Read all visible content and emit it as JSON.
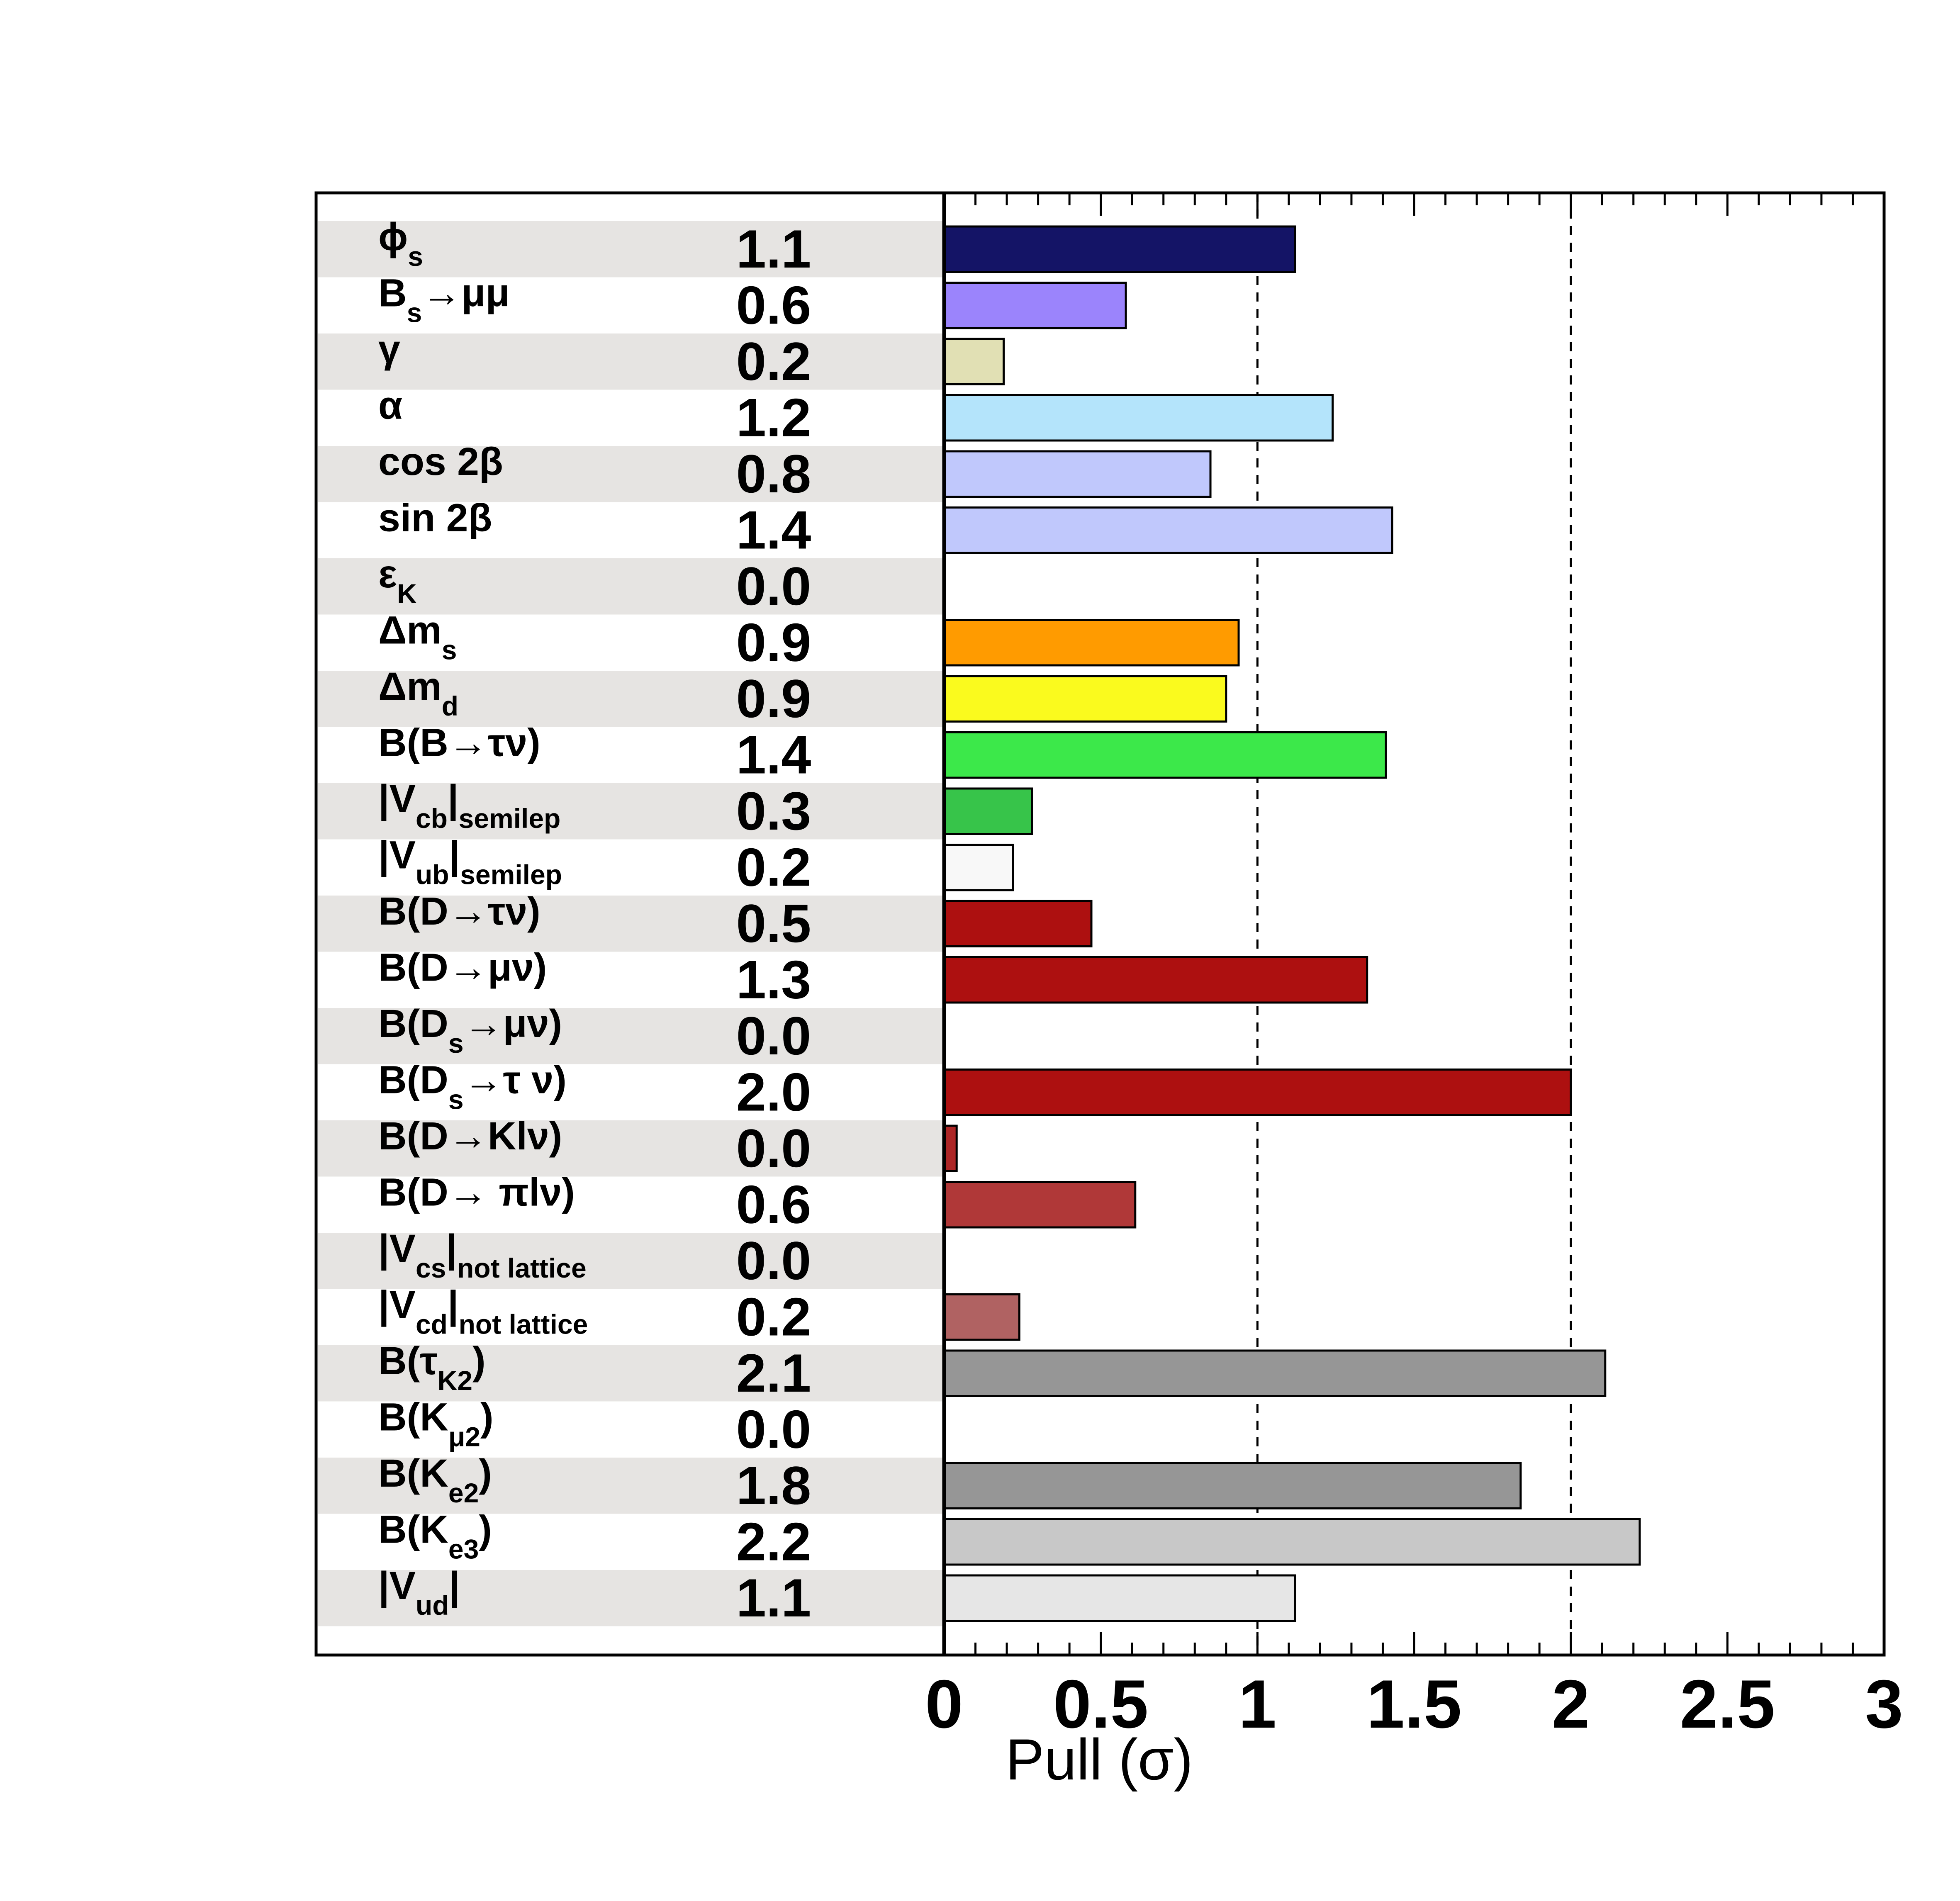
{
  "chart_data": {
    "type": "bar",
    "orientation": "horizontal",
    "xlabel": "Pull (σ)",
    "xlim": [
      0,
      3
    ],
    "x_ticks": [
      "0",
      "0.5",
      "1",
      "1.5",
      "2",
      "2.5",
      "3"
    ],
    "reference_lines": [
      1,
      2
    ],
    "rows": [
      {
        "label": "ϕ",
        "sub": "s",
        "value_text": "1.1",
        "value": 1.12,
        "color": "#141466"
      },
      {
        "label": "B",
        "sub": "s",
        "suffix": "→μμ",
        "value_text": "0.6",
        "value": 0.58,
        "color": "#9b84fc"
      },
      {
        "label": "γ",
        "value_text": "0.2",
        "value": 0.19,
        "color": "#e1e0b4"
      },
      {
        "label": "α",
        "value_text": "1.2",
        "value": 1.24,
        "color": "#b4e4fb"
      },
      {
        "label": "cos 2β",
        "value_text": "0.8",
        "value": 0.85,
        "color": "#c0c8fc"
      },
      {
        "label": "sin 2β",
        "value_text": "1.4",
        "value": 1.43,
        "color": "#c0c8fc"
      },
      {
        "label": "ε",
        "sub": "K",
        "value_text": "0.0",
        "value": 0.0,
        "color": "#ffffff"
      },
      {
        "label": "Δm",
        "sub": "s",
        "value_text": "0.9",
        "value": 0.94,
        "color": "#ff9b00"
      },
      {
        "label": "Δm",
        "sub": "d",
        "value_text": "0.9",
        "value": 0.9,
        "color": "#fafa1e"
      },
      {
        "label": "B(B→τν)",
        "value_text": "1.4",
        "value": 1.41,
        "color": "#3ce84a"
      },
      {
        "label": "|V",
        "sub": "cb",
        "suffix": "|",
        "sub2": "semilep",
        "value_text": "0.3",
        "value": 0.28,
        "color": "#37c44a"
      },
      {
        "label": "|V",
        "sub": "ub",
        "suffix": "|",
        "sub2": "semilep",
        "value_text": "0.2",
        "value": 0.22,
        "color": "#f8f8f8"
      },
      {
        "label": "B(D→τν)",
        "value_text": "0.5",
        "value": 0.47,
        "color": "#ad1010"
      },
      {
        "label": "B(D→μν)",
        "value_text": "1.3",
        "value": 1.35,
        "color": "#ad1010"
      },
      {
        "label": "B(D",
        "sub": "s",
        "suffix": "→μν)",
        "value_text": "0.0",
        "value": 0.0,
        "color": "#ad1010"
      },
      {
        "label": "B(D",
        "sub": "s",
        "suffix": "→τ ν)",
        "value_text": "2.0",
        "value": 2.0,
        "color": "#ad1010"
      },
      {
        "label": "B(D→Klν)",
        "value_text": "0.0",
        "value": 0.04,
        "color": "#ad2626"
      },
      {
        "label": "B(D→ πlν)",
        "value_text": "0.6",
        "value": 0.61,
        "color": "#b03838"
      },
      {
        "label": "|V",
        "sub": "cs",
        "suffix": "|",
        "sub2": "not lattice",
        "value_text": "0.0",
        "value": 0.0,
        "color": "#b06262"
      },
      {
        "label": "|V",
        "sub": "cd",
        "suffix": "|",
        "sub2": "not lattice",
        "value_text": "0.2",
        "value": 0.24,
        "color": "#b06262"
      },
      {
        "label": "B(τ",
        "sub": "K2",
        "suffix": ")",
        "value_text": "2.1",
        "value": 2.11,
        "color": "#969696"
      },
      {
        "label": "B(K",
        "sub": "μ2",
        "suffix": ")",
        "value_text": "0.0",
        "value": 0.0,
        "color": "#969696"
      },
      {
        "label": "B(K",
        "sub": "e2",
        "suffix": ")",
        "value_text": "1.8",
        "value": 1.84,
        "color": "#969696"
      },
      {
        "label": "B(K",
        "sub": "e3",
        "suffix": ")",
        "value_text": "2.2",
        "value": 2.22,
        "color": "#c8c8c8"
      },
      {
        "label": "|V",
        "sub": "ud",
        "suffix": "|",
        "value_text": "1.1",
        "value": 1.12,
        "color": "#e6e6e6"
      }
    ]
  }
}
